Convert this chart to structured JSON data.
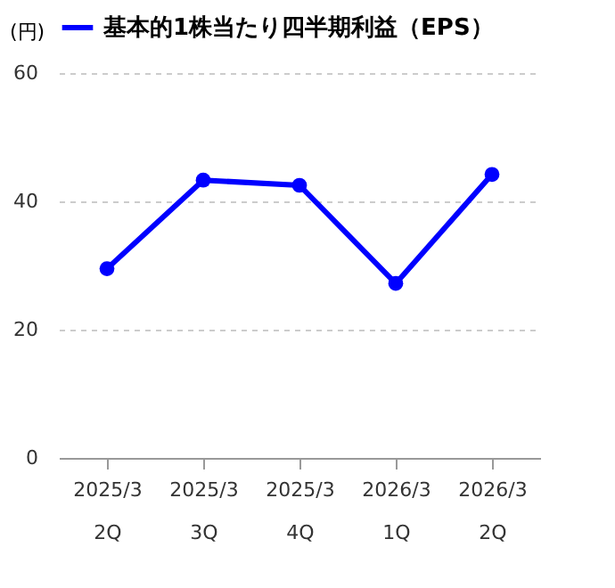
{
  "chart_data": {
    "type": "line",
    "categories": [
      "2025/3\n2Q",
      "2025/3\n3Q",
      "2025/3\n4Q",
      "2026/3\n1Q",
      "2026/3\n2Q"
    ],
    "series": [
      {
        "name": "基本的1株当たり四半期利益（EPS）",
        "color": "#0000ff",
        "values": [
          29.5,
          43.3,
          42.5,
          27.2,
          44.2
        ]
      }
    ],
    "ylabel": "(円)",
    "ylim": [
      0,
      60
    ],
    "yticks": [
      0,
      20,
      40,
      60
    ],
    "grid": "y",
    "legend": "top",
    "marker": "circle",
    "line_style": "solid"
  }
}
